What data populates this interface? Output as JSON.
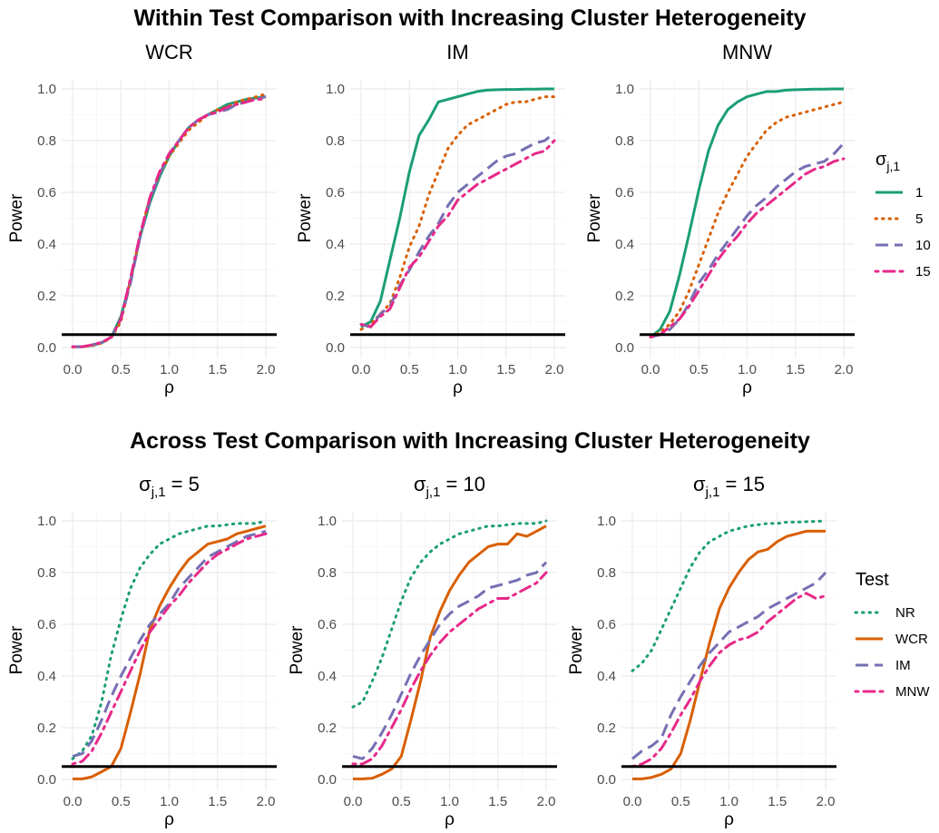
{
  "rows": [
    {
      "title": "Within Test Comparison with Increasing Cluster Heterogeneity"
    },
    {
      "title": "Across Test Comparison with Increasing Cluster Heterogeneity"
    }
  ],
  "legends": [
    {
      "title_main": "σ",
      "title_sub": "j,1",
      "items": [
        {
          "label": "1",
          "color": "#1b9e77",
          "dash": "solid"
        },
        {
          "label": "5",
          "color": "#d95f02",
          "dash": "dotted"
        },
        {
          "label": "10",
          "color": "#7570b3",
          "dash": "dashed"
        },
        {
          "label": "15",
          "color": "#e7298a",
          "dash": "dotdash"
        }
      ]
    },
    {
      "title_main": "Test",
      "title_sub": "",
      "items": [
        {
          "label": "NR",
          "color": "#1b9e77",
          "dash": "dotted"
        },
        {
          "label": "WCR",
          "color": "#d95f02",
          "dash": "solid"
        },
        {
          "label": "IM",
          "color": "#7570b3",
          "dash": "dashed"
        },
        {
          "label": "MNW",
          "color": "#e7298a",
          "dash": "dotdash"
        }
      ]
    }
  ],
  "chart_data": [
    {
      "type": "line",
      "title": "WCR",
      "xlabel": "ρ",
      "ylabel": "Power",
      "xlim": [
        0,
        2
      ],
      "ylim": [
        0,
        1
      ],
      "xticks": [
        "0.0",
        "0.5",
        "1.0",
        "1.5",
        "2.0"
      ],
      "yticks": [
        "0.0",
        "0.2",
        "0.4",
        "0.6",
        "0.8",
        "1.0"
      ],
      "hline": 0.05,
      "x": [
        0,
        0.1,
        0.2,
        0.3,
        0.4,
        0.5,
        0.6,
        0.7,
        0.8,
        0.9,
        1.0,
        1.1,
        1.2,
        1.3,
        1.4,
        1.5,
        1.6,
        1.7,
        1.8,
        1.9,
        2.0
      ],
      "series": [
        {
          "name": "1",
          "values": [
            0.003,
            0.003,
            0.008,
            0.018,
            0.04,
            0.12,
            0.26,
            0.43,
            0.56,
            0.66,
            0.74,
            0.8,
            0.85,
            0.88,
            0.9,
            0.92,
            0.94,
            0.95,
            0.96,
            0.965,
            0.97
          ]
        },
        {
          "name": "5",
          "values": [
            0.002,
            0.003,
            0.007,
            0.017,
            0.038,
            0.1,
            0.26,
            0.44,
            0.58,
            0.67,
            0.74,
            0.79,
            0.84,
            0.87,
            0.9,
            0.92,
            0.93,
            0.95,
            0.96,
            0.97,
            0.98
          ]
        },
        {
          "name": "10",
          "values": [
            0.003,
            0.003,
            0.01,
            0.02,
            0.04,
            0.11,
            0.25,
            0.43,
            0.57,
            0.67,
            0.75,
            0.8,
            0.85,
            0.88,
            0.9,
            0.91,
            0.92,
            0.94,
            0.95,
            0.96,
            0.97
          ]
        },
        {
          "name": "15",
          "values": [
            0.003,
            0.003,
            0.01,
            0.02,
            0.04,
            0.11,
            0.27,
            0.44,
            0.58,
            0.68,
            0.75,
            0.8,
            0.85,
            0.88,
            0.9,
            0.91,
            0.93,
            0.94,
            0.95,
            0.96,
            0.96
          ]
        }
      ]
    },
    {
      "type": "line",
      "title": "IM",
      "xlabel": "ρ",
      "ylabel": "Power",
      "xlim": [
        0,
        2
      ],
      "ylim": [
        0,
        1
      ],
      "xticks": [
        "0.0",
        "0.5",
        "1.0",
        "1.5",
        "2.0"
      ],
      "yticks": [
        "0.0",
        "0.2",
        "0.4",
        "0.6",
        "0.8",
        "1.0"
      ],
      "hline": 0.05,
      "x": [
        0,
        0.1,
        0.2,
        0.3,
        0.4,
        0.5,
        0.6,
        0.7,
        0.8,
        0.9,
        1.0,
        1.1,
        1.2,
        1.3,
        1.4,
        1.5,
        1.6,
        1.7,
        1.8,
        1.9,
        2.0
      ],
      "series": [
        {
          "name": "1",
          "values": [
            0.08,
            0.1,
            0.18,
            0.34,
            0.5,
            0.68,
            0.82,
            0.88,
            0.95,
            0.96,
            0.97,
            0.98,
            0.99,
            0.995,
            0.997,
            0.998,
            0.998,
            0.999,
            0.999,
            1.0,
            1.0
          ]
        },
        {
          "name": "5",
          "values": [
            0.07,
            0.09,
            0.13,
            0.17,
            0.27,
            0.39,
            0.47,
            0.59,
            0.68,
            0.77,
            0.82,
            0.86,
            0.88,
            0.9,
            0.92,
            0.94,
            0.95,
            0.95,
            0.96,
            0.97,
            0.97
          ]
        },
        {
          "name": "10",
          "values": [
            0.09,
            0.08,
            0.13,
            0.16,
            0.24,
            0.3,
            0.37,
            0.43,
            0.48,
            0.55,
            0.6,
            0.63,
            0.66,
            0.69,
            0.72,
            0.74,
            0.75,
            0.77,
            0.79,
            0.8,
            0.83
          ]
        },
        {
          "name": "15",
          "values": [
            0.09,
            0.08,
            0.12,
            0.15,
            0.23,
            0.31,
            0.35,
            0.41,
            0.47,
            0.51,
            0.57,
            0.6,
            0.63,
            0.65,
            0.67,
            0.69,
            0.71,
            0.73,
            0.75,
            0.76,
            0.8
          ]
        }
      ]
    },
    {
      "type": "line",
      "title": "MNW",
      "xlabel": "ρ",
      "ylabel": "Power",
      "xlim": [
        0,
        2
      ],
      "ylim": [
        0,
        1
      ],
      "xticks": [
        "0.0",
        "0.5",
        "1.0",
        "1.5",
        "2.0"
      ],
      "yticks": [
        "0.0",
        "0.2",
        "0.4",
        "0.6",
        "0.8",
        "1.0"
      ],
      "hline": 0.05,
      "x": [
        0,
        0.1,
        0.2,
        0.3,
        0.4,
        0.5,
        0.6,
        0.7,
        0.8,
        0.9,
        1.0,
        1.1,
        1.2,
        1.3,
        1.4,
        1.5,
        1.6,
        1.7,
        1.8,
        1.9,
        2.0
      ],
      "series": [
        {
          "name": "1",
          "values": [
            0.04,
            0.07,
            0.14,
            0.28,
            0.44,
            0.61,
            0.76,
            0.86,
            0.92,
            0.95,
            0.97,
            0.98,
            0.99,
            0.99,
            0.995,
            0.997,
            0.998,
            0.999,
            0.999,
            1.0,
            1.0
          ]
        },
        {
          "name": "5",
          "values": [
            0.04,
            0.06,
            0.09,
            0.14,
            0.22,
            0.32,
            0.42,
            0.52,
            0.6,
            0.67,
            0.74,
            0.79,
            0.84,
            0.87,
            0.89,
            0.9,
            0.91,
            0.92,
            0.93,
            0.94,
            0.95
          ]
        },
        {
          "name": "10",
          "values": [
            0.04,
            0.05,
            0.07,
            0.11,
            0.17,
            0.25,
            0.3,
            0.36,
            0.41,
            0.46,
            0.51,
            0.55,
            0.58,
            0.62,
            0.65,
            0.68,
            0.7,
            0.71,
            0.72,
            0.75,
            0.79
          ]
        },
        {
          "name": "15",
          "values": [
            0.04,
            0.05,
            0.08,
            0.11,
            0.16,
            0.22,
            0.28,
            0.34,
            0.39,
            0.43,
            0.48,
            0.52,
            0.55,
            0.58,
            0.61,
            0.64,
            0.67,
            0.69,
            0.7,
            0.72,
            0.73
          ]
        }
      ]
    },
    {
      "type": "line",
      "title_main": "σ",
      "title_sub": "j,1",
      "title_rest": " = 5",
      "xlabel": "ρ",
      "ylabel": "Power",
      "xlim": [
        0,
        2
      ],
      "ylim": [
        0,
        1
      ],
      "xticks": [
        "0.0",
        "0.5",
        "1.0",
        "1.5",
        "2.0"
      ],
      "yticks": [
        "0.0",
        "0.2",
        "0.4",
        "0.6",
        "0.8",
        "1.0"
      ],
      "hline": 0.05,
      "x": [
        0,
        0.1,
        0.2,
        0.3,
        0.4,
        0.5,
        0.6,
        0.7,
        0.8,
        0.9,
        1.0,
        1.1,
        1.2,
        1.3,
        1.4,
        1.5,
        1.6,
        1.7,
        1.8,
        1.9,
        2.0
      ],
      "series": [
        {
          "name": "NR",
          "values": [
            0.08,
            0.11,
            0.17,
            0.3,
            0.48,
            0.62,
            0.74,
            0.82,
            0.87,
            0.91,
            0.93,
            0.95,
            0.96,
            0.97,
            0.98,
            0.98,
            0.985,
            0.99,
            0.99,
            0.99,
            1.0
          ]
        },
        {
          "name": "WCR",
          "values": [
            0.002,
            0.002,
            0.01,
            0.03,
            0.05,
            0.12,
            0.26,
            0.41,
            0.58,
            0.67,
            0.74,
            0.8,
            0.85,
            0.88,
            0.91,
            0.92,
            0.93,
            0.95,
            0.96,
            0.97,
            0.98
          ]
        },
        {
          "name": "IM",
          "values": [
            0.09,
            0.1,
            0.15,
            0.23,
            0.32,
            0.4,
            0.47,
            0.54,
            0.6,
            0.64,
            0.68,
            0.74,
            0.78,
            0.82,
            0.86,
            0.88,
            0.9,
            0.92,
            0.94,
            0.95,
            0.96
          ]
        },
        {
          "name": "MNW",
          "values": [
            0.06,
            0.07,
            0.11,
            0.18,
            0.26,
            0.34,
            0.42,
            0.5,
            0.57,
            0.62,
            0.67,
            0.71,
            0.76,
            0.8,
            0.84,
            0.87,
            0.89,
            0.91,
            0.93,
            0.94,
            0.95
          ]
        }
      ]
    },
    {
      "type": "line",
      "title_main": "σ",
      "title_sub": "j,1",
      "title_rest": " = 10",
      "xlabel": "ρ",
      "ylabel": "Power",
      "xlim": [
        0,
        2
      ],
      "ylim": [
        0,
        1
      ],
      "xticks": [
        "0.0",
        "0.5",
        "1.0",
        "1.5",
        "2.0"
      ],
      "yticks": [
        "0.0",
        "0.2",
        "0.4",
        "0.6",
        "0.8",
        "1.0"
      ],
      "hline": 0.05,
      "x": [
        0,
        0.1,
        0.2,
        0.3,
        0.4,
        0.5,
        0.6,
        0.7,
        0.8,
        0.9,
        1.0,
        1.1,
        1.2,
        1.3,
        1.4,
        1.5,
        1.6,
        1.7,
        1.8,
        1.9,
        2.0
      ],
      "series": [
        {
          "name": "NR",
          "values": [
            0.28,
            0.3,
            0.38,
            0.47,
            0.58,
            0.69,
            0.78,
            0.84,
            0.88,
            0.91,
            0.93,
            0.95,
            0.96,
            0.97,
            0.98,
            0.98,
            0.985,
            0.99,
            0.99,
            0.99,
            1.0
          ]
        },
        {
          "name": "WCR",
          "values": [
            0.002,
            0.002,
            0.005,
            0.02,
            0.04,
            0.09,
            0.23,
            0.38,
            0.55,
            0.65,
            0.73,
            0.79,
            0.84,
            0.87,
            0.9,
            0.91,
            0.91,
            0.95,
            0.94,
            0.96,
            0.98
          ]
        },
        {
          "name": "IM",
          "values": [
            0.09,
            0.08,
            0.12,
            0.18,
            0.25,
            0.33,
            0.41,
            0.48,
            0.54,
            0.6,
            0.64,
            0.67,
            0.69,
            0.71,
            0.74,
            0.75,
            0.76,
            0.77,
            0.79,
            0.8,
            0.84
          ]
        },
        {
          "name": "MNW",
          "values": [
            0.06,
            0.06,
            0.08,
            0.13,
            0.2,
            0.27,
            0.35,
            0.42,
            0.48,
            0.53,
            0.57,
            0.6,
            0.63,
            0.66,
            0.68,
            0.7,
            0.7,
            0.72,
            0.74,
            0.76,
            0.8
          ]
        }
      ]
    },
    {
      "type": "line",
      "title_main": "σ",
      "title_sub": "j,1",
      "title_rest": " = 15",
      "xlabel": "ρ",
      "ylabel": "Power",
      "xlim": [
        0,
        2
      ],
      "ylim": [
        0,
        1
      ],
      "xticks": [
        "0.0",
        "0.5",
        "1.0",
        "1.5",
        "2.0"
      ],
      "yticks": [
        "0.0",
        "0.2",
        "0.4",
        "0.6",
        "0.8",
        "1.0"
      ],
      "hline": 0.05,
      "x": [
        0,
        0.1,
        0.2,
        0.3,
        0.4,
        0.5,
        0.6,
        0.7,
        0.8,
        0.9,
        1.0,
        1.1,
        1.2,
        1.3,
        1.4,
        1.5,
        1.6,
        1.7,
        1.8,
        1.9,
        2.0
      ],
      "series": [
        {
          "name": "NR",
          "values": [
            0.42,
            0.45,
            0.5,
            0.58,
            0.66,
            0.74,
            0.82,
            0.88,
            0.92,
            0.94,
            0.96,
            0.97,
            0.98,
            0.985,
            0.99,
            0.99,
            0.995,
            0.995,
            0.997,
            0.998,
            1.0
          ]
        },
        {
          "name": "WCR",
          "values": [
            0.002,
            0.002,
            0.008,
            0.02,
            0.04,
            0.1,
            0.23,
            0.38,
            0.53,
            0.66,
            0.74,
            0.8,
            0.85,
            0.88,
            0.89,
            0.92,
            0.94,
            0.95,
            0.96,
            0.96,
            0.96
          ]
        },
        {
          "name": "IM",
          "values": [
            0.08,
            0.11,
            0.13,
            0.16,
            0.25,
            0.32,
            0.38,
            0.44,
            0.49,
            0.53,
            0.57,
            0.59,
            0.61,
            0.63,
            0.66,
            0.68,
            0.7,
            0.72,
            0.74,
            0.76,
            0.8
          ]
        },
        {
          "name": "MNW",
          "values": [
            0.05,
            0.06,
            0.08,
            0.12,
            0.18,
            0.25,
            0.31,
            0.38,
            0.44,
            0.49,
            0.52,
            0.54,
            0.55,
            0.57,
            0.61,
            0.64,
            0.67,
            0.7,
            0.72,
            0.7,
            0.71
          ]
        }
      ]
    }
  ]
}
